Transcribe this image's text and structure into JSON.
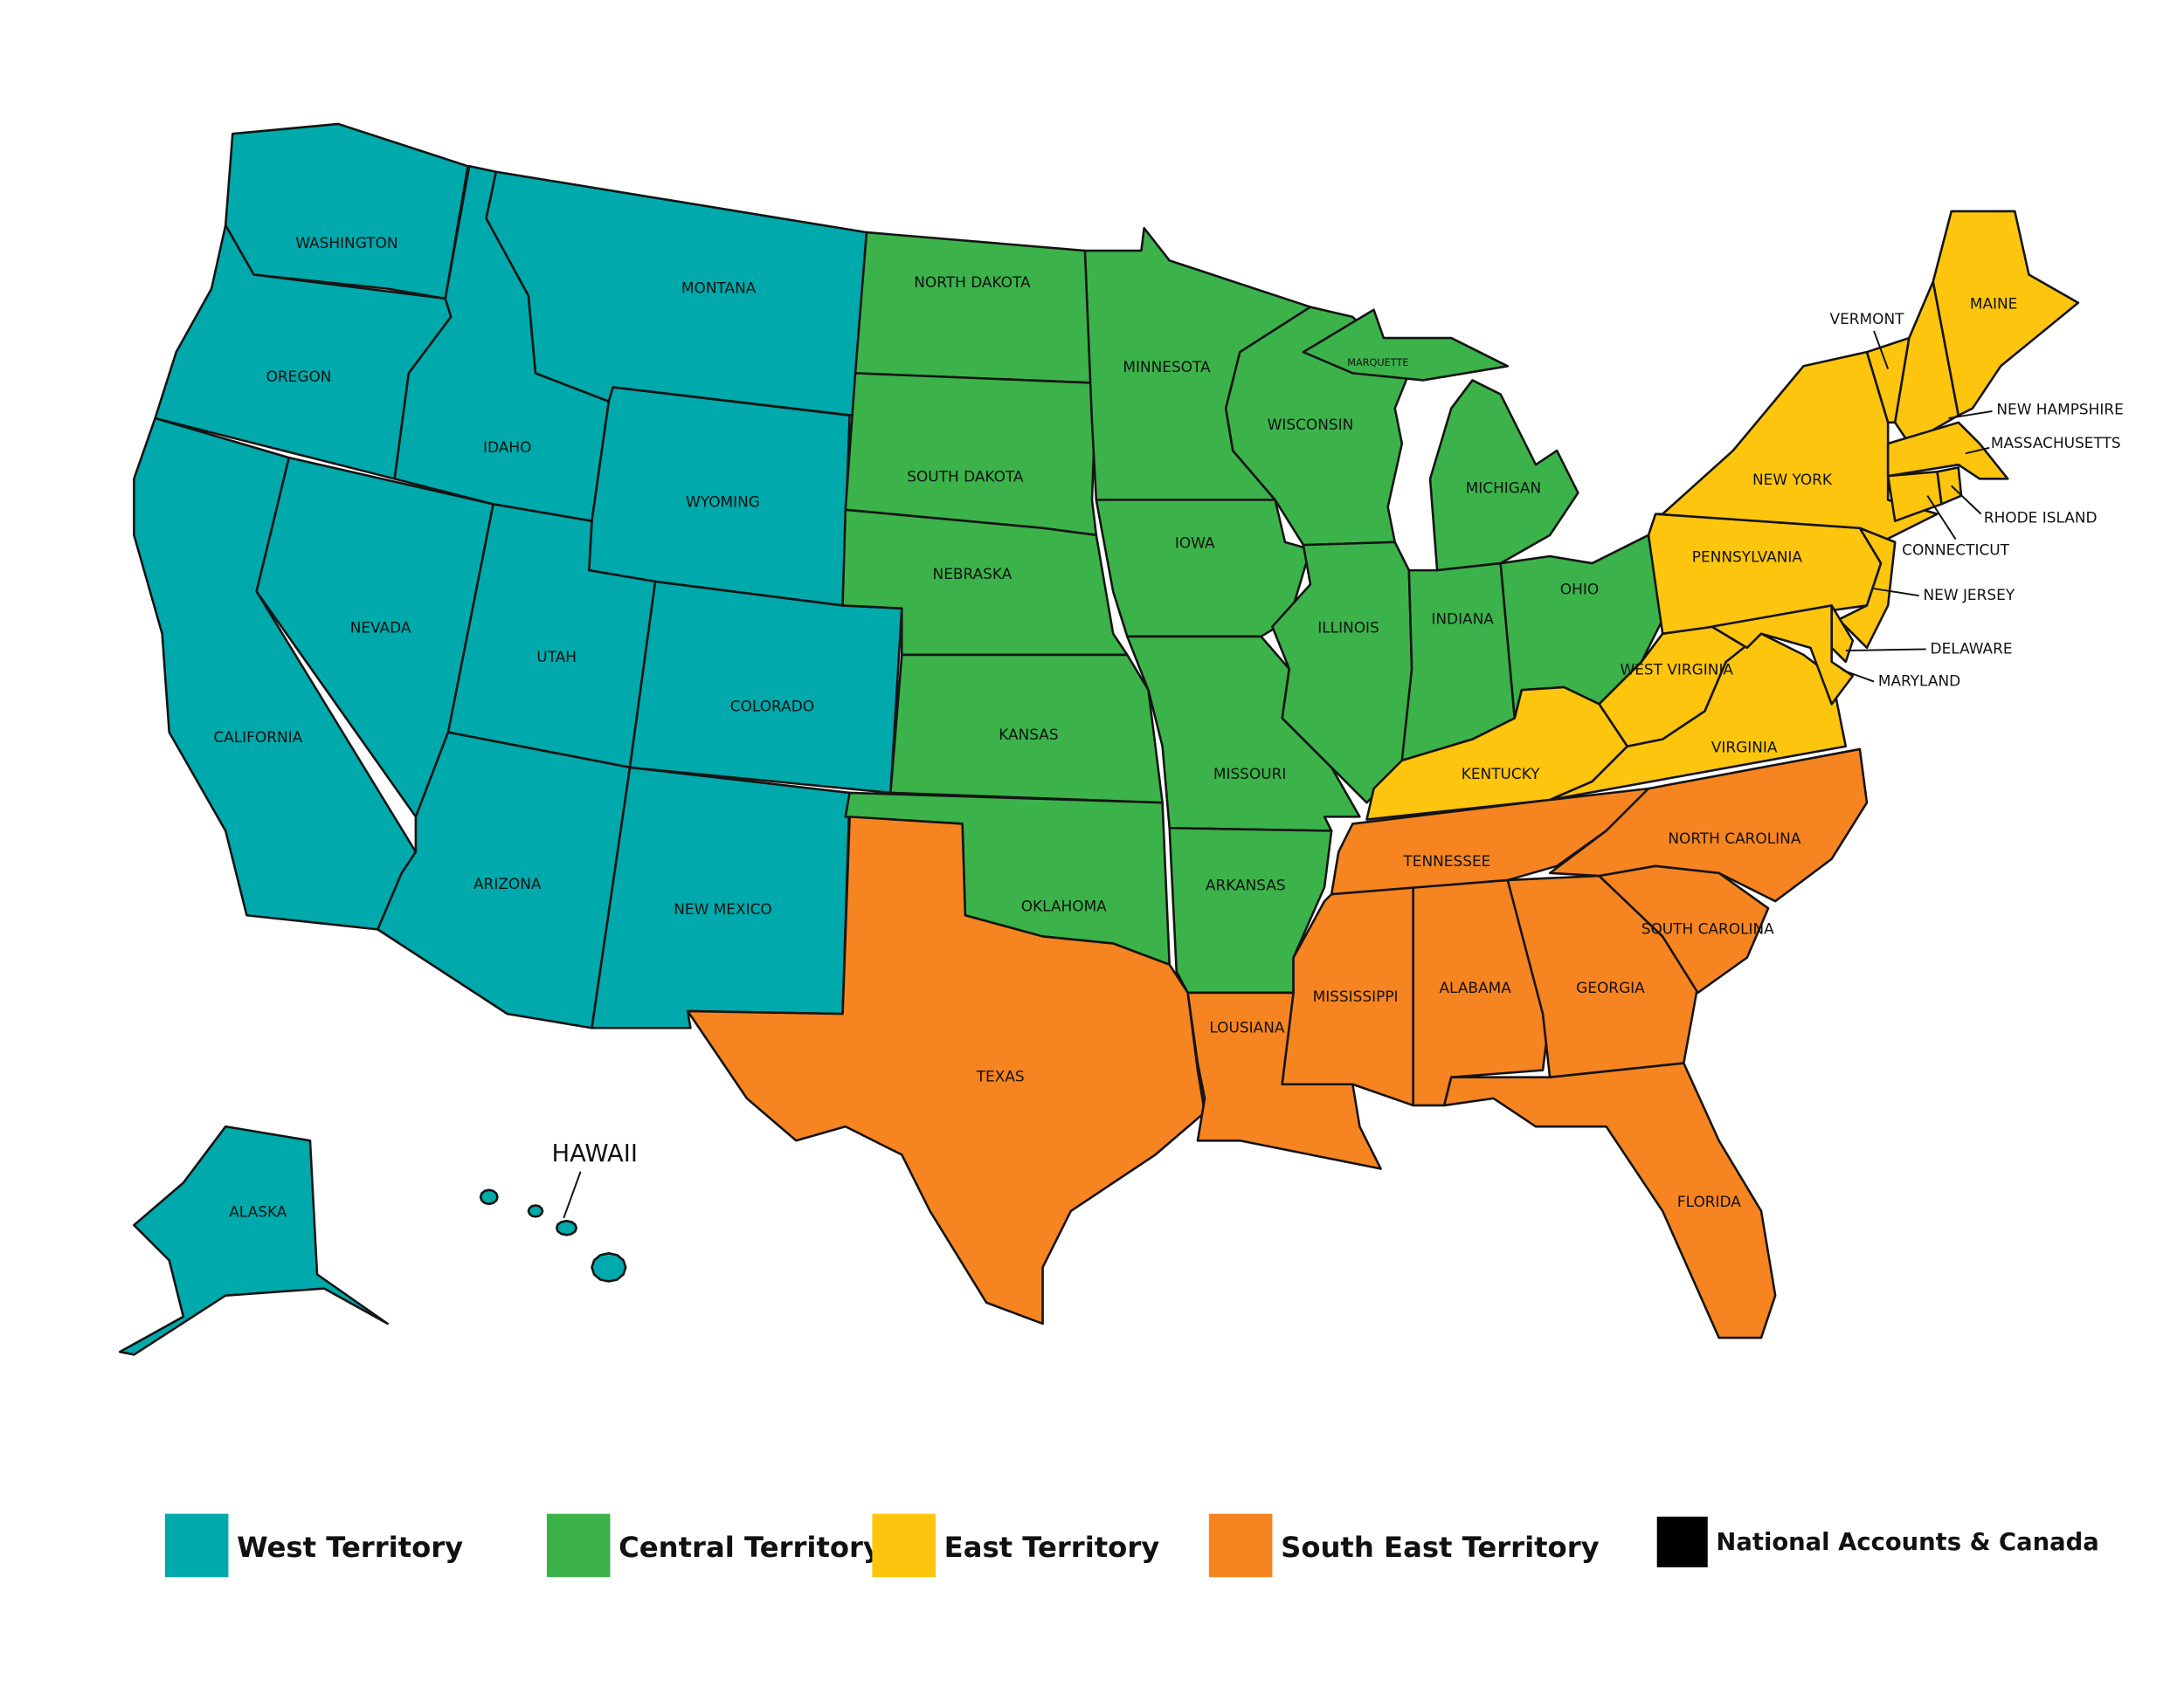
{
  "territories": [
    {
      "name": "West Territory",
      "color": "#00a9ab",
      "states": [
        "WASHINGTON",
        "OREGON",
        "CALIFORNIA",
        "NEVADA",
        "IDAHO",
        "MONTANA",
        "WYOMING",
        "UTAH",
        "COLORADO",
        "ARIZONA",
        "NEW MEXICO",
        "ALASKA",
        "HAWAII"
      ]
    },
    {
      "name": "Central Territory",
      "color": "#3bb34a",
      "states": [
        "NORTH DAKOTA",
        "SOUTH DAKOTA",
        "NEBRASKA",
        "KANSAS",
        "OKLAHOMA",
        "MINNESOTA",
        "IOWA",
        "MISSOURI",
        "ARKANSAS",
        "WISCONSIN",
        "ILLINOIS",
        "MICHIGAN",
        "INDIANA",
        "OHIO"
      ]
    },
    {
      "name": "East Territory",
      "color": "#fdc50d",
      "states": [
        "KENTUCKY",
        "WEST VIRGINIA",
        "VIRGINIA",
        "PENNSYLVANIA",
        "NEW YORK",
        "NEW JERSEY",
        "DELAWARE",
        "MARYLAND",
        "VERMONT",
        "NEW HAMPSHIRE",
        "MAINE",
        "MASSACHUSETTS",
        "CONNECTICUT",
        "RHODE ISLAND"
      ]
    },
    {
      "name": "South East Territory",
      "color": "#f68420",
      "states": [
        "TEXAS",
        "LOUSIANA",
        "MISSISSIPPI",
        "ALABAMA",
        "GEORGIA",
        "FLORIDA",
        "TENNESSEE",
        "NORTH CAROLINA",
        "SOUTH CAROLINA"
      ]
    },
    {
      "name": "National Accounts & Canada",
      "color": "#000000",
      "states": []
    }
  ],
  "annotations": [
    "MARQUETTE"
  ]
}
